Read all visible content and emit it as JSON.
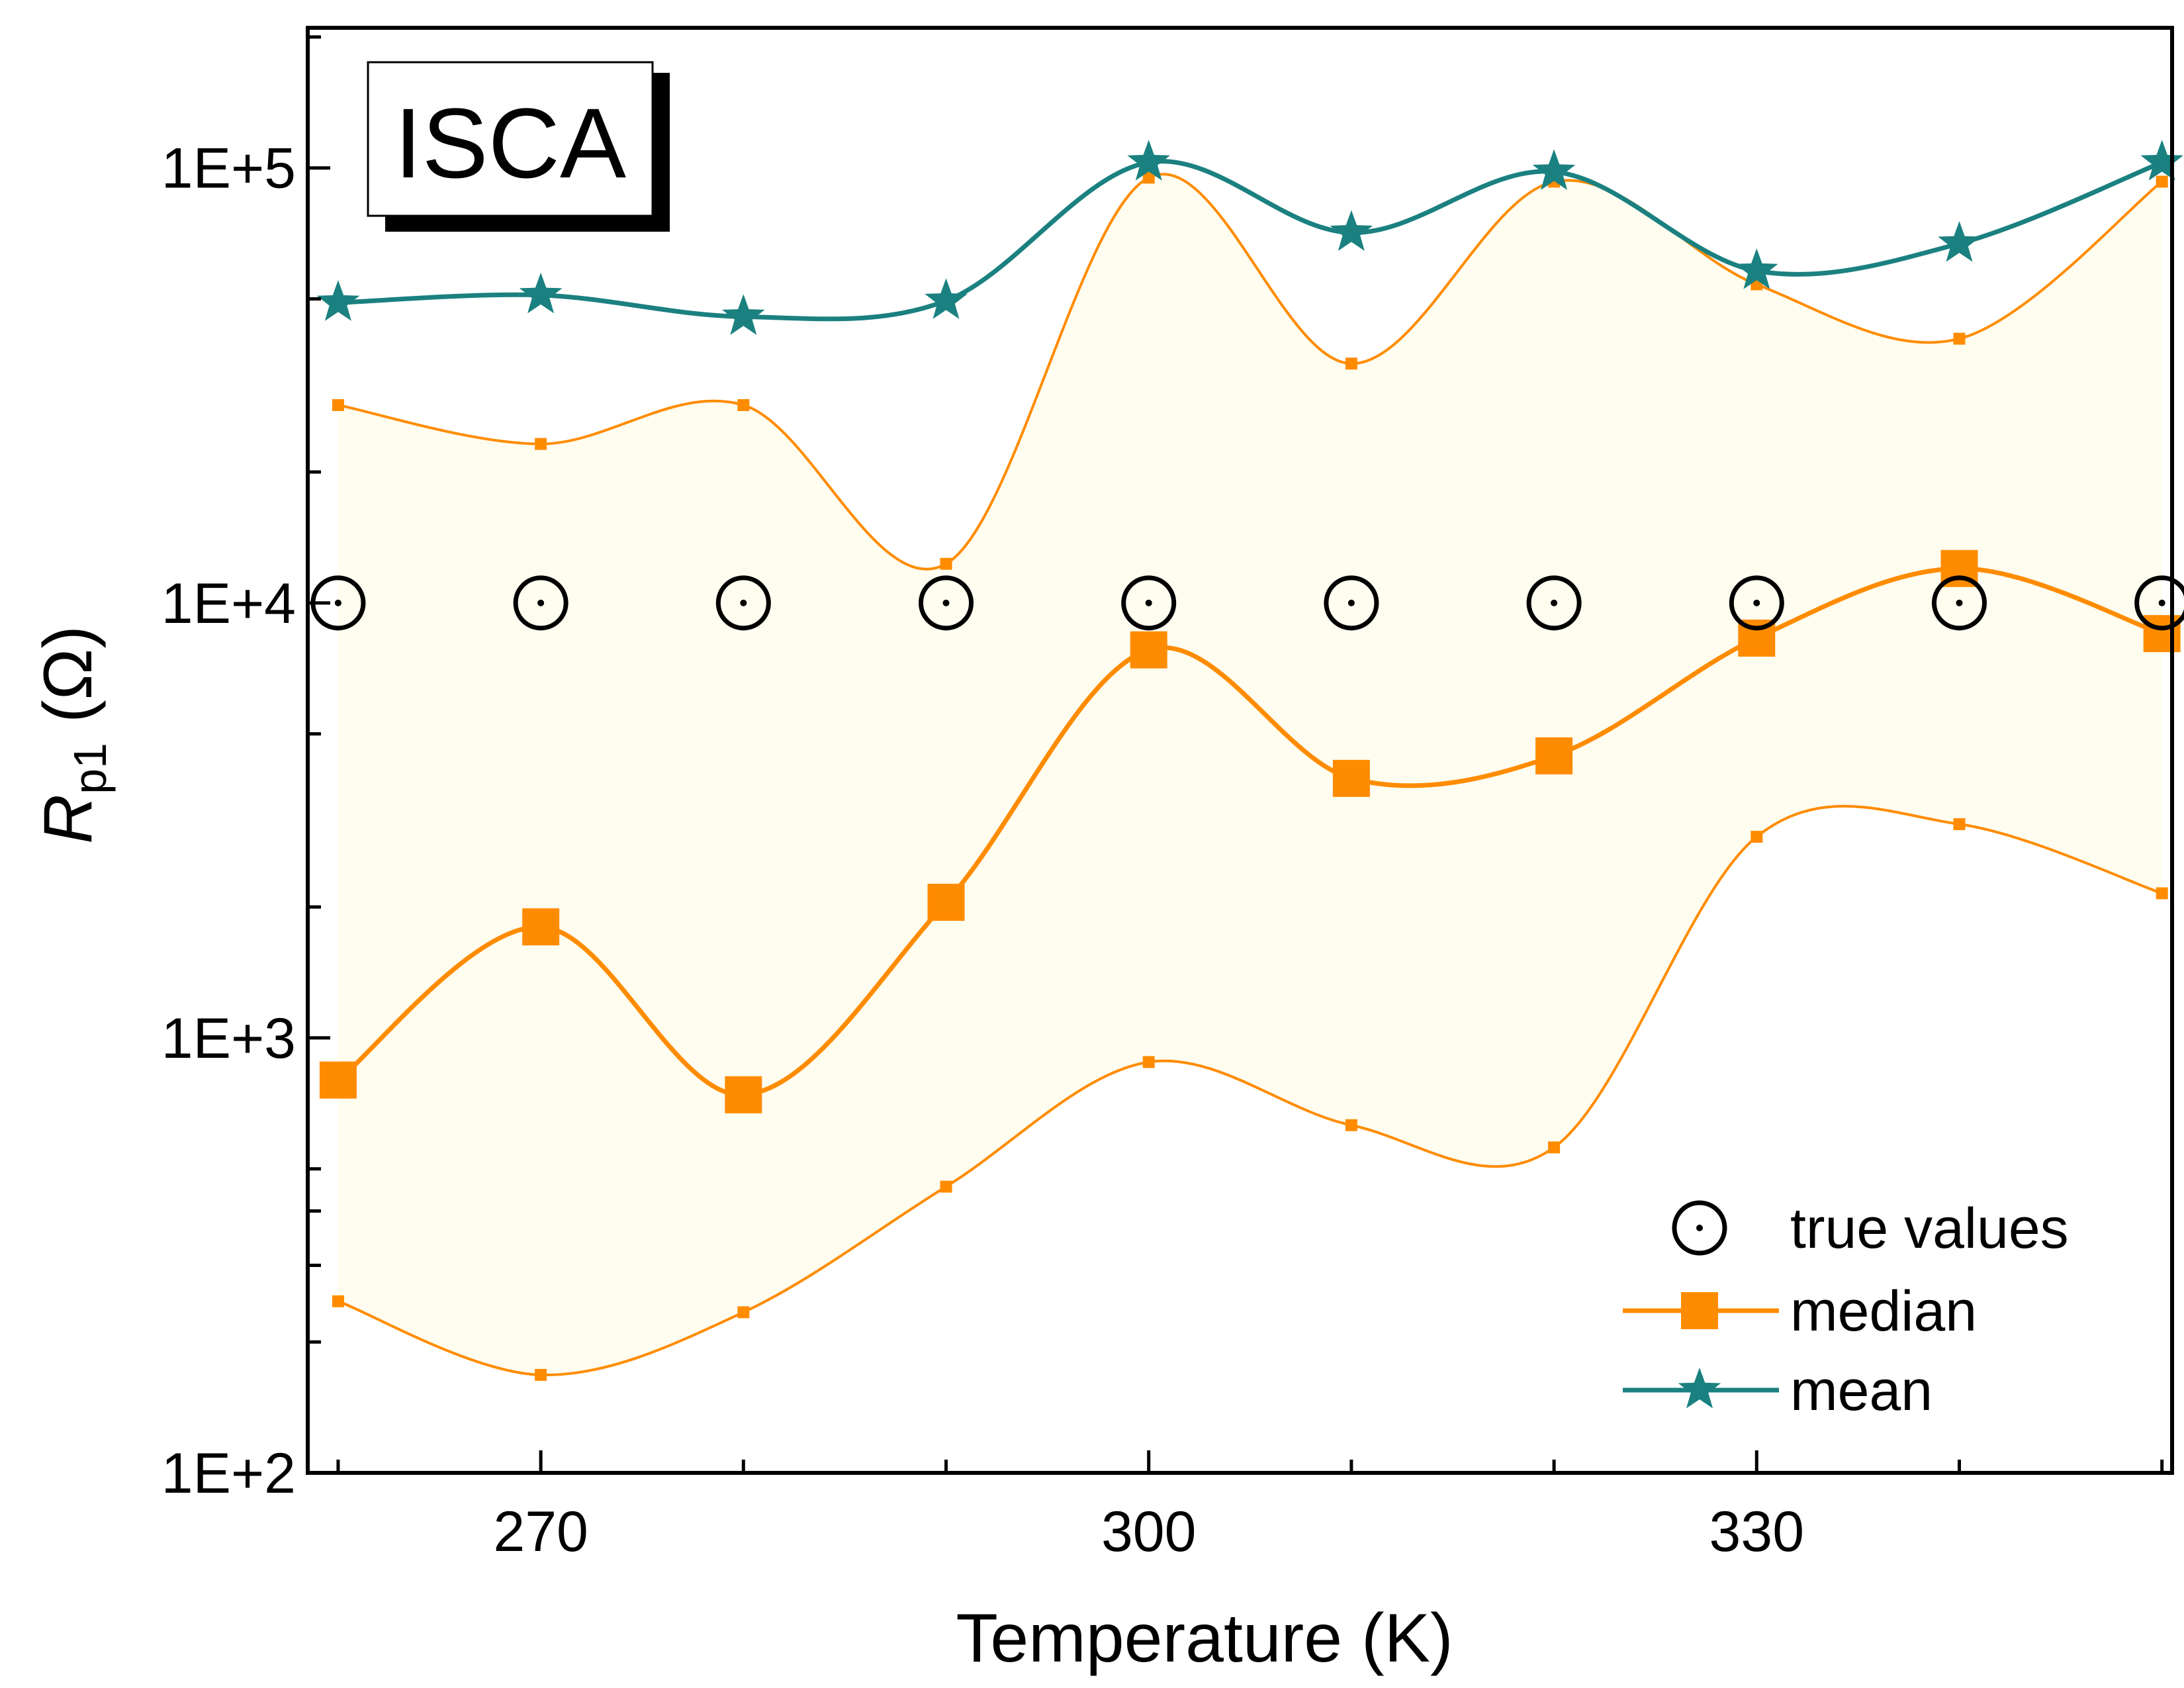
{
  "chart_data": {
    "type": "line",
    "panel_label": "ISCA",
    "xlabel": "Temperature (K)",
    "ylabel": {
      "symbol": "R",
      "subscript": "p1",
      "unit": "(Ω)"
    },
    "xlim": [
      258.5,
      350.5
    ],
    "ylim": [
      100,
      210000
    ],
    "yscale": "log",
    "x_ticks": [
      270,
      300,
      330
    ],
    "x_tick_labels": [
      "270",
      "300",
      "330"
    ],
    "y_ticks": [
      100,
      1000,
      10000,
      100000
    ],
    "y_tick_labels": [
      "1E+2",
      "1E+3",
      "1E+4",
      "1E+5"
    ],
    "x": [
      260,
      270,
      280,
      290,
      300,
      310,
      320,
      330,
      340,
      350
    ],
    "series": [
      {
        "name": "true values",
        "marker": "circle-dot",
        "color": "#000000",
        "values": [
          10000,
          10000,
          10000,
          10000,
          10000,
          10000,
          10000,
          10000,
          10000,
          10000
        ]
      },
      {
        "name": "median",
        "marker": "square",
        "color": "#FF8C00",
        "values": [
          800,
          1800,
          740,
          2050,
          7800,
          3950,
          4450,
          8300,
          12000,
          8500
        ]
      },
      {
        "name": "mean",
        "marker": "star",
        "color": "#1B8080",
        "values": [
          49000,
          51000,
          45500,
          49500,
          103000,
          71000,
          98000,
          58000,
          67000,
          103000
        ]
      }
    ],
    "band": {
      "color": "#FFFDF0",
      "line_color": "#FF8C00",
      "upper": [
        28500,
        23200,
        28500,
        12300,
        95000,
        35500,
        93000,
        54000,
        40500,
        93000
      ],
      "lower": [
        248,
        168,
        234,
        455,
        880,
        630,
        560,
        2900,
        3100,
        2150
      ]
    },
    "legend": {
      "position": "bottom-right",
      "items": [
        "true values",
        "median",
        "mean"
      ]
    }
  }
}
